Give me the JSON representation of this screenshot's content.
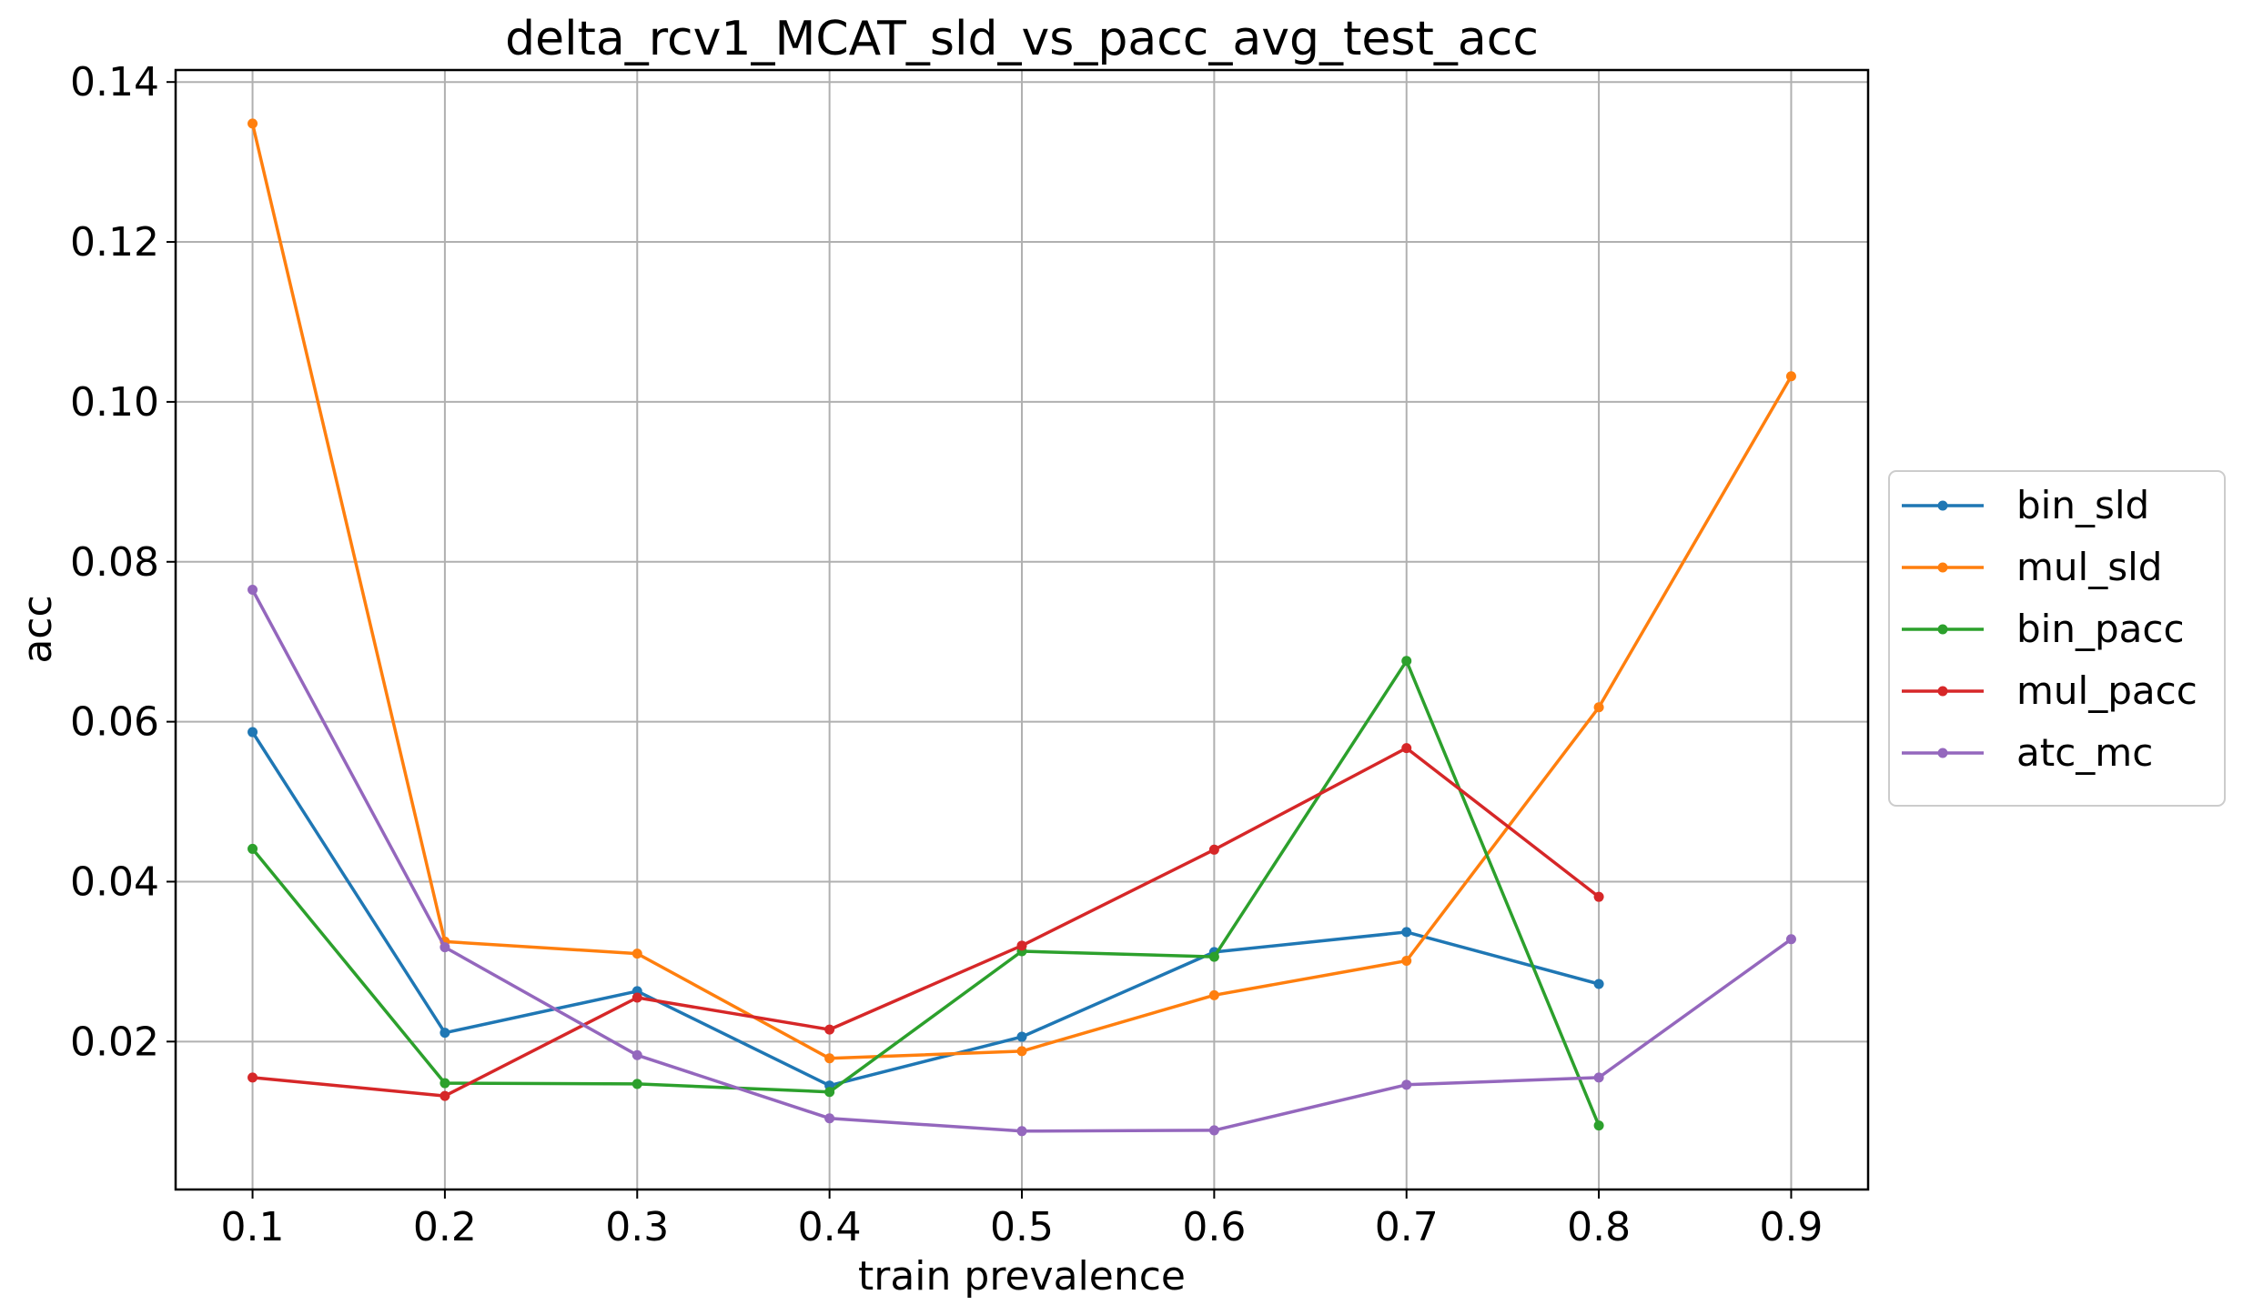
{
  "chart_data": {
    "type": "line",
    "title": "delta_rcv1_MCAT_sld_vs_pacc_avg_test_acc",
    "xlabel": "train prevalence",
    "ylabel": "acc",
    "x": [
      0.1,
      0.2,
      0.3,
      0.4,
      0.5,
      0.6,
      0.7,
      0.8,
      0.9
    ],
    "x_ticks": [
      "0.1",
      "0.2",
      "0.3",
      "0.4",
      "0.5",
      "0.6",
      "0.7",
      "0.8",
      "0.9"
    ],
    "y_ticks": [
      "0.02",
      "0.04",
      "0.06",
      "0.08",
      "0.10",
      "0.12",
      "0.14"
    ],
    "xlim": [
      0.06,
      0.94
    ],
    "ylim": [
      0.0015,
      0.1415
    ],
    "grid": true,
    "legend_position": "right",
    "series": [
      {
        "name": "bin_sld",
        "color": "#1f77b4",
        "x": [
          0.1,
          0.2,
          0.3,
          0.4,
          0.5,
          0.6,
          0.7,
          0.8
        ],
        "values": [
          0.0587,
          0.0211,
          0.0263,
          0.0145,
          0.0206,
          0.0312,
          0.0337,
          0.0272
        ]
      },
      {
        "name": "mul_sld",
        "color": "#ff7f0e",
        "x": [
          0.1,
          0.2,
          0.3,
          0.4,
          0.5,
          0.6,
          0.7,
          0.8,
          0.9
        ],
        "values": [
          0.1348,
          0.0325,
          0.031,
          0.0179,
          0.0188,
          0.0258,
          0.0301,
          0.0618,
          0.1032
        ]
      },
      {
        "name": "bin_pacc",
        "color": "#2ca02c",
        "x": [
          0.1,
          0.2,
          0.3,
          0.4,
          0.5,
          0.6,
          0.7,
          0.8
        ],
        "values": [
          0.0441,
          0.0148,
          0.0147,
          0.0137,
          0.0313,
          0.0306,
          0.0676,
          0.0095
        ]
      },
      {
        "name": "mul_pacc",
        "color": "#d62728",
        "x": [
          0.1,
          0.2,
          0.3,
          0.4,
          0.5,
          0.6,
          0.7,
          0.8
        ],
        "values": [
          0.0155,
          0.0132,
          0.0255,
          0.0215,
          0.032,
          0.044,
          0.0567,
          0.0381
        ]
      },
      {
        "name": "atc_mc",
        "color": "#9467bd",
        "x": [
          0.1,
          0.2,
          0.3,
          0.4,
          0.5,
          0.6,
          0.7,
          0.8,
          0.9
        ],
        "values": [
          0.0765,
          0.0318,
          0.0183,
          0.0104,
          0.0088,
          0.0089,
          0.0146,
          0.0155,
          0.0328
        ]
      }
    ]
  }
}
